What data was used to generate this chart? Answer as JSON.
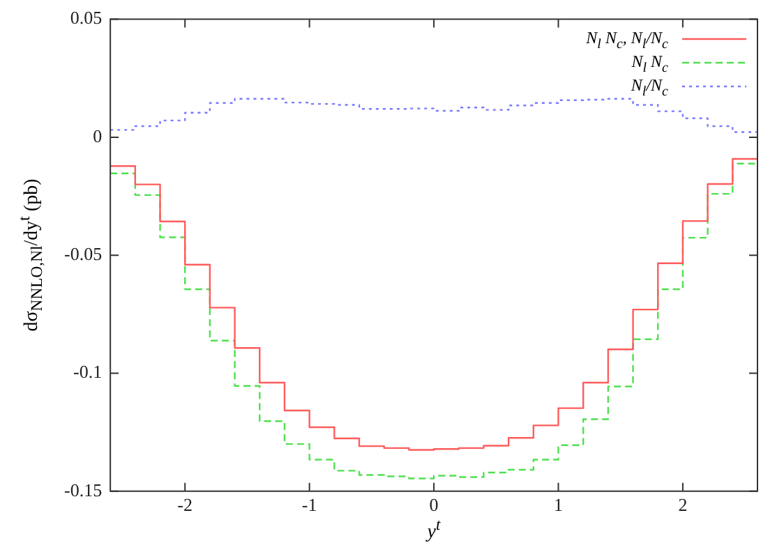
{
  "chart_data": {
    "type": "step",
    "xlabel": "y$^{t}$",
    "ylabel": "dσ$_{NNLO,Nl}$/dy$^{t}$ (pb)",
    "x": [
      -2.6,
      -2.4,
      -2.2,
      -2.0,
      -1.8,
      -1.6,
      -1.4,
      -1.2,
      -1.0,
      -0.8,
      -0.6,
      -0.4,
      -0.2,
      0,
      0.2,
      0.4,
      0.6,
      0.8,
      1.0,
      1.2,
      1.4,
      1.6,
      1.8,
      2.0,
      2.2,
      2.4,
      2.6
    ],
    "series": [
      {
        "name": "N$_{l}$ N$_{c}$, N$_{l}$/N$_{c}$",
        "color": "#ff5c5c",
        "line_style": "solid",
        "values": [
          -0.0122,
          -0.02,
          -0.0357,
          -0.054,
          -0.0722,
          -0.0893,
          -0.104,
          -0.1158,
          -0.1229,
          -0.1276,
          -0.1309,
          -0.1317,
          -0.1325,
          -0.1321,
          -0.1317,
          -0.1307,
          -0.1274,
          -0.1221,
          -0.1148,
          -0.104,
          -0.0899,
          -0.073,
          -0.0534,
          -0.0355,
          -0.0198,
          -0.0092,
          -0.0092
        ]
      },
      {
        "name": "N$_{l}$ N$_{c}$",
        "color": "#4fe04f",
        "line_style": "dashed",
        "values": [
          -0.0153,
          -0.0245,
          -0.0424,
          -0.0644,
          -0.0862,
          -0.1054,
          -0.1203,
          -0.13,
          -0.1366,
          -0.1413,
          -0.1431,
          -0.1437,
          -0.1446,
          -0.1434,
          -0.144,
          -0.1421,
          -0.1409,
          -0.1366,
          -0.1305,
          -0.1195,
          -0.1056,
          -0.0856,
          -0.0644,
          -0.0426,
          -0.024,
          -0.0112,
          -0.0112
        ]
      },
      {
        "name": "N$_{l}$/N$_{c}$",
        "color": "#7a7aff",
        "line_style": "dotted",
        "values": [
          0.0031,
          0.0047,
          0.0071,
          0.0104,
          0.0145,
          0.0163,
          0.0163,
          0.0147,
          0.0141,
          0.0137,
          0.012,
          0.012,
          0.0122,
          0.0112,
          0.0126,
          0.0116,
          0.0135,
          0.0145,
          0.0157,
          0.0159,
          0.0163,
          0.0137,
          0.011,
          0.008,
          0.0047,
          0.0022,
          0.0022
        ]
      }
    ],
    "xlim": [
      -2.6,
      2.6
    ],
    "xticks": [
      -2,
      -1,
      0,
      1,
      2
    ],
    "ylim": [
      -0.15,
      0.05
    ],
    "yticks": [
      -0.15,
      -0.1,
      -0.05,
      0,
      0.05
    ],
    "grid": false,
    "legend": "top right"
  }
}
